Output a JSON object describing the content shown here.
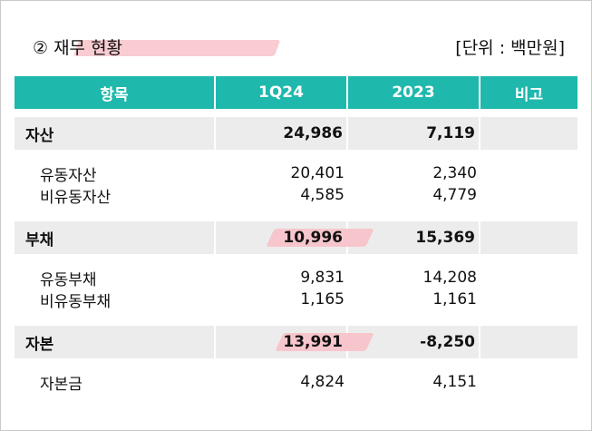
{
  "title": "② 재무 현황",
  "unit": "[단위 : 백만원]",
  "colors": {
    "header_bg": "#1fb8ad",
    "group_bg": "#ececec",
    "highlight": "#f7c6cc"
  },
  "table": {
    "headers": [
      "항목",
      "1Q24",
      "2023",
      "비고"
    ],
    "groups": [
      {
        "label": "자산",
        "q124": "24,986",
        "y2023": "7,119",
        "note": "",
        "items": [
          {
            "label": "유동자산",
            "q124": "20,401",
            "y2023": "2,340"
          },
          {
            "label": "비유동자산",
            "q124": "4,585",
            "y2023": "4,779"
          }
        ]
      },
      {
        "label": "부채",
        "q124": "10,996",
        "y2023": "15,369",
        "note": "",
        "items": [
          {
            "label": "유동부채",
            "q124": "9,831",
            "y2023": "14,208"
          },
          {
            "label": "비유동부채",
            "q124": "1,165",
            "y2023": "1,161"
          }
        ]
      },
      {
        "label": "자본",
        "q124": "13,991",
        "y2023": "-8,250",
        "note": "",
        "items": [
          {
            "label": "자본금",
            "q124": "4,824",
            "y2023": "4,151"
          }
        ]
      }
    ]
  }
}
